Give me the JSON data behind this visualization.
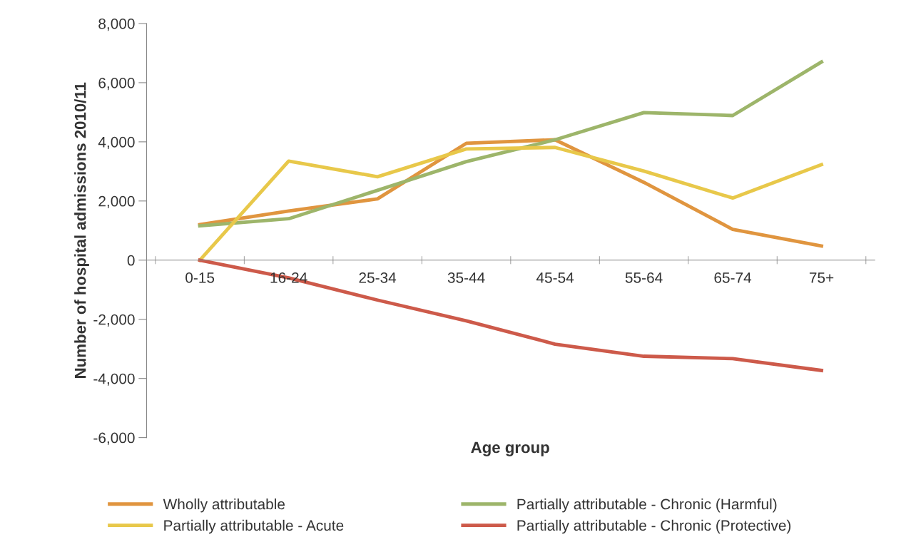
{
  "chart_data": {
    "type": "line",
    "xlabel": "Age group",
    "ylabel": "Number of hospital admissions 2010/11",
    "categories": [
      "0-15",
      "16-24",
      "25-34",
      "35-44",
      "45-54",
      "55-64",
      "65-74",
      "75+"
    ],
    "series": [
      {
        "name": "Wholly attributable",
        "color": "#e0953f",
        "values": [
          1200,
          1660,
          2070,
          3950,
          4070,
          2630,
          1040,
          480
        ]
      },
      {
        "name": "Partially attributable - Chronic (Harmful)",
        "color": "#9db56a",
        "values": [
          1160,
          1400,
          2360,
          3330,
          4070,
          4990,
          4890,
          6700
        ]
      },
      {
        "name": "Partially attributable - Acute",
        "color": "#e8c84a",
        "values": [
          0,
          3350,
          2820,
          3760,
          3810,
          3010,
          2100,
          3230
        ]
      },
      {
        "name": "Partially attributable - Chronic (Protective)",
        "color": "#cd5a4a",
        "values": [
          0,
          -600,
          -1350,
          -2050,
          -2840,
          -3250,
          -3330,
          -3730
        ]
      }
    ],
    "ylim": [
      -6000,
      8000
    ],
    "yticks": [
      {
        "value": -6000,
        "label": "-6,000"
      },
      {
        "value": -4000,
        "label": "-4,000"
      },
      {
        "value": -2000,
        "label": "-2,000"
      },
      0,
      {
        "value": 2000,
        "label": "2,000"
      },
      {
        "value": 4000,
        "label": "4,000"
      },
      {
        "value": 6000,
        "label": "6,000"
      },
      {
        "value": 8000,
        "label": "8,000"
      }
    ],
    "grid": false,
    "legend": "bottom",
    "marker": "none",
    "line_style": "solid"
  }
}
